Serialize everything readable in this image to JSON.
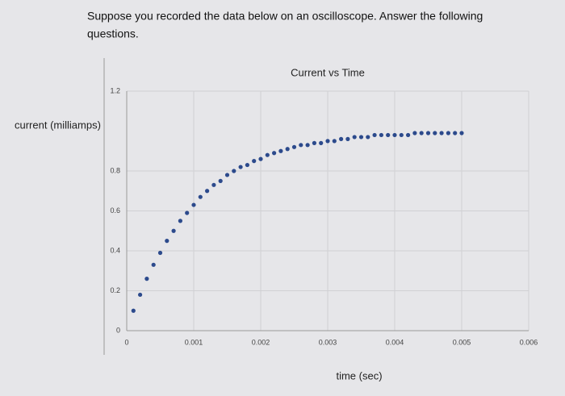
{
  "question": [
    "Suppose you recorded the data below on an oscilloscope. Answer the following",
    "questions."
  ],
  "chart_data": {
    "type": "scatter",
    "title": "Current vs Time",
    "xlabel": "time (sec)",
    "ylabel": "current (milliamps)",
    "x": [
      0.0001,
      0.0002,
      0.0003,
      0.0004,
      0.0005,
      0.0006,
      0.0007,
      0.0008,
      0.0009,
      0.001,
      0.0011,
      0.0012,
      0.0013,
      0.0014,
      0.0015,
      0.0016,
      0.0017,
      0.0018,
      0.0019,
      0.002,
      0.0021,
      0.0022,
      0.0023,
      0.0024,
      0.0025,
      0.0026,
      0.0027,
      0.0028,
      0.0029,
      0.003,
      0.0031,
      0.0032,
      0.0033,
      0.0034,
      0.0035,
      0.0036,
      0.0037,
      0.0038,
      0.0039,
      0.004,
      0.0041,
      0.0042,
      0.0043,
      0.0044,
      0.0045,
      0.0046,
      0.0047,
      0.0048,
      0.0049,
      0.005
    ],
    "values": [
      0.1,
      0.18,
      0.26,
      0.33,
      0.39,
      0.45,
      0.5,
      0.55,
      0.59,
      0.63,
      0.67,
      0.7,
      0.73,
      0.75,
      0.78,
      0.8,
      0.82,
      0.83,
      0.85,
      0.86,
      0.88,
      0.89,
      0.9,
      0.91,
      0.92,
      0.93,
      0.93,
      0.94,
      0.94,
      0.95,
      0.95,
      0.96,
      0.96,
      0.97,
      0.97,
      0.97,
      0.98,
      0.98,
      0.98,
      0.98,
      0.98,
      0.98,
      0.99,
      0.99,
      0.99,
      0.99,
      0.99,
      0.99,
      0.99,
      0.99
    ],
    "color": "#2c4a8c",
    "xlim": [
      0,
      0.006
    ],
    "xticks": [
      0,
      0.001,
      0.002,
      0.003,
      0.004,
      0.005,
      0.006
    ],
    "ylim": [
      0,
      1.2
    ],
    "yticks": [
      0,
      0.2,
      0.4,
      0.6,
      0.8,
      1.2
    ],
    "grid": true
  }
}
